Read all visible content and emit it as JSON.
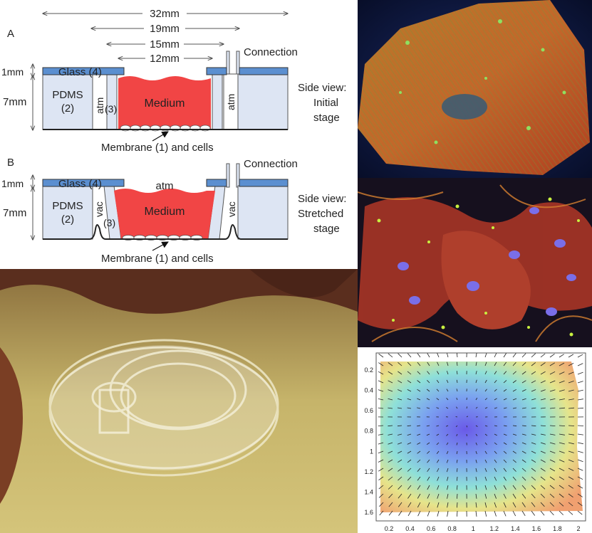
{
  "schematic": {
    "dims": {
      "d32": "32mm",
      "d19": "19mm",
      "d15": "15mm",
      "d12": "12mm"
    },
    "panel_a": {
      "letter": "A",
      "connection": "Connection",
      "glass": "Glass (4)",
      "pdms_line1": "PDMS",
      "pdms_line2": "(2)",
      "chamber_left": "atm",
      "chamber_right": "atm",
      "wall": "(3)",
      "medium": "Medium",
      "dim_1mm": "1mm",
      "dim_7mm": "7mm",
      "membrane": "Membrane (1) and cells",
      "caption_line1": "Side view:",
      "caption_line2": "Initial",
      "caption_line3": "stage"
    },
    "panel_b": {
      "letter": "B",
      "connection": "Connection",
      "glass": "Glass (4)",
      "pdms_line1": "PDMS",
      "pdms_line2": "(2)",
      "chamber_left": "vac",
      "chamber_right": "vac",
      "wall": "(3)",
      "medium": "Medium",
      "top_atm": "atm",
      "dim_1mm": "1mm",
      "dim_7mm": "7mm",
      "membrane": "Membrane (1) and cells",
      "caption_line1": "Side view:",
      "caption_line2": "Stretched",
      "caption_line3": "stage"
    },
    "colors": {
      "glass": "#5b8fd0",
      "pdms": "#dde5f3",
      "medium": "#f14545",
      "line": "#333333"
    }
  },
  "vector_plot": {
    "x_ticks": [
      "0.2",
      "0.4",
      "0.6",
      "0.8",
      "1",
      "1.2",
      "1.4",
      "1.6",
      "1.8",
      "2"
    ],
    "y_ticks": [
      "0.2",
      "0.4",
      "0.6",
      "0.8",
      "1",
      "1.2",
      "1.4",
      "1.6"
    ]
  }
}
